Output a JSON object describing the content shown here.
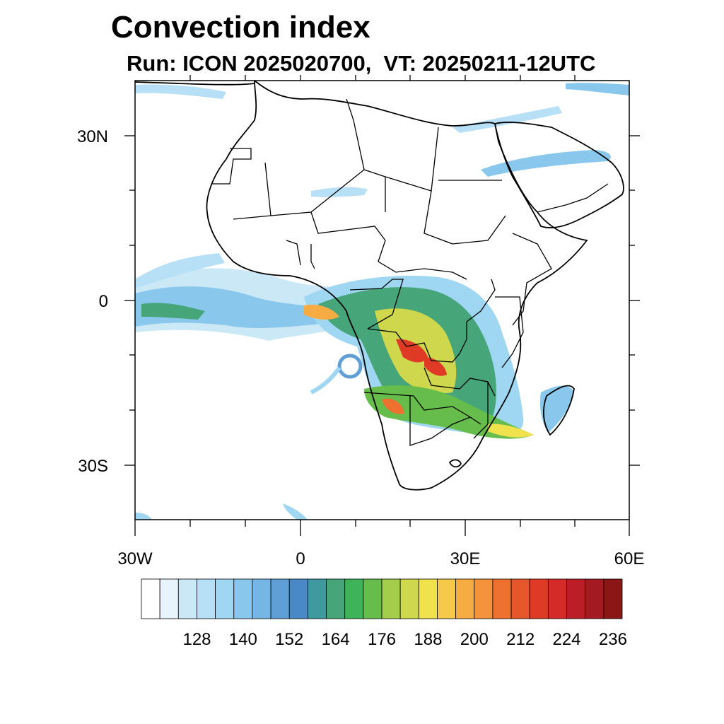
{
  "title": "Convection index",
  "subtitle": "Run: ICON 2025020700,  VT: 20250211-12UTC",
  "map": {
    "lon_range": [
      -30,
      60
    ],
    "lat_range": [
      -40,
      40
    ],
    "lat_ticks": [
      {
        "value": 30,
        "label": "30N"
      },
      {
        "value": 0,
        "label": "0"
      },
      {
        "value": -30,
        "label": "30S"
      }
    ],
    "lon_ticks": [
      {
        "value": -30,
        "label": "30W"
      },
      {
        "value": 0,
        "label": "0"
      },
      {
        "value": 30,
        "label": "30E"
      },
      {
        "value": 60,
        "label": "60E"
      }
    ],
    "coastline_color": "#000000"
  },
  "colorbar": {
    "colors": [
      "#ffffff",
      "#e8f4fb",
      "#cbe8f7",
      "#b7e0f6",
      "#9fd7f3",
      "#8ac7ec",
      "#76b6e6",
      "#5f9fd6",
      "#4a89c7",
      "#3e9a9e",
      "#47a57a",
      "#3fb35a",
      "#66bd4c",
      "#a5cd4c",
      "#cfd84d",
      "#f0e24c",
      "#f7c94a",
      "#f6ac42",
      "#f5923c",
      "#ef7130",
      "#e6562b",
      "#de3a26",
      "#d42a28",
      "#bb1e27",
      "#a31a22",
      "#8b1616"
    ],
    "labels": [
      "128",
      "140",
      "152",
      "164",
      "176",
      "188",
      "200",
      "212",
      "224",
      "236"
    ]
  }
}
